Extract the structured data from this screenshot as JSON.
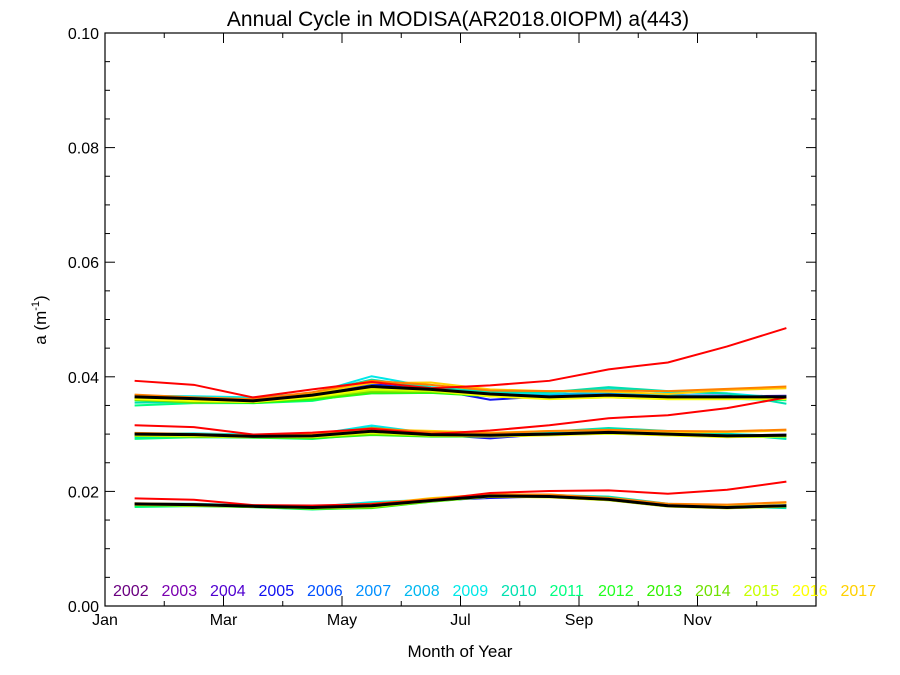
{
  "chart_data": {
    "type": "line",
    "title": "Annual Cycle in MODISA(AR2018.0IOPM) a(443)",
    "xlabel": "Month of Year",
    "ylabel": "a (m",
    "ylabel_exponent": "-1",
    "ylabel_close": ")",
    "xlim": [
      0,
      12
    ],
    "ylim": [
      0.0,
      0.1
    ],
    "x_ticks": [
      {
        "value": 0,
        "label": "Jan"
      },
      {
        "value": 2,
        "label": "Mar"
      },
      {
        "value": 4,
        "label": "May"
      },
      {
        "value": 6,
        "label": "Jul"
      },
      {
        "value": 8,
        "label": "Sep"
      },
      {
        "value": 10,
        "label": "Nov"
      }
    ],
    "y_ticks": [
      {
        "value": 0.0,
        "label": "0.00"
      },
      {
        "value": 0.02,
        "label": "0.02"
      },
      {
        "value": 0.04,
        "label": "0.04"
      },
      {
        "value": 0.06,
        "label": "0.06"
      },
      {
        "value": 0.08,
        "label": "0.08"
      },
      {
        "value": 0.1,
        "label": "0.10"
      }
    ],
    "grid": false,
    "legend_position": "bottom, inside plot area",
    "x": [
      0.5,
      1.5,
      2.5,
      3.5,
      4.5,
      5.5,
      6.5,
      7.5,
      8.5,
      9.5,
      10.5,
      11.5
    ],
    "groups": [
      {
        "baseline": [
          0.0365,
          0.0362,
          0.0358,
          0.0368,
          0.0383,
          0.0378,
          0.037,
          0.0365,
          0.0368,
          0.0365,
          0.0365,
          0.0365
        ],
        "mean": [
          0.0365,
          0.0362,
          0.0358,
          0.0368,
          0.0383,
          0.0378,
          0.037,
          0.0365,
          0.0368,
          0.0365,
          0.0365,
          0.0365
        ]
      },
      {
        "baseline": [
          0.03,
          0.0299,
          0.0296,
          0.0297,
          0.0305,
          0.0299,
          0.0298,
          0.03,
          0.0303,
          0.03,
          0.0297,
          0.0298
        ],
        "mean": [
          0.03,
          0.0299,
          0.0296,
          0.0297,
          0.0305,
          0.0299,
          0.0298,
          0.03,
          0.0303,
          0.03,
          0.0297,
          0.0298
        ]
      },
      {
        "baseline": [
          0.0178,
          0.0177,
          0.0174,
          0.0172,
          0.0175,
          0.0184,
          0.0192,
          0.0191,
          0.0186,
          0.0175,
          0.0172,
          0.0175
        ],
        "mean": [
          0.0178,
          0.0177,
          0.0174,
          0.0172,
          0.0175,
          0.0184,
          0.0192,
          0.0191,
          0.0186,
          0.0175,
          0.0172,
          0.0175
        ]
      }
    ],
    "series": [
      {
        "name": "2002",
        "color": "#6a0080",
        "offsets": [
          0.0001,
          0.0002,
          0.0003,
          -0.0001,
          0.0004,
          0.0002,
          -0.0001,
          0.0,
          0.0001,
          0.0002,
          0.0001,
          0.0
        ]
      },
      {
        "name": "2003",
        "color": "#7a00b0",
        "offsets": [
          0.0002,
          0.0001,
          0.0002,
          0.0003,
          0.0006,
          0.0003,
          0.0,
          0.0001,
          -0.0001,
          0.0001,
          0.0,
          0.0001
        ]
      },
      {
        "name": "2004",
        "color": "#5000d0",
        "offsets": [
          0.0,
          0.0,
          0.0002,
          0.0003,
          0.0004,
          0.0001,
          -0.0002,
          0.0,
          0.0001,
          0.0,
          0.0001,
          0.0002
        ]
      },
      {
        "name": "2005",
        "color": "#1010f0",
        "offsets": [
          -0.0002,
          -0.0003,
          0.0,
          0.0002,
          0.0003,
          0.0001,
          -0.001,
          0.0001,
          0.0002,
          0.0003,
          0.0002,
          0.0
        ]
      },
      {
        "name": "2006",
        "color": "#0050ff",
        "offsets": [
          -0.0001,
          -0.0002,
          0.0001,
          -0.0003,
          0.0002,
          0.0,
          -0.0004,
          0.0002,
          0.0003,
          0.0001,
          0.0,
          -0.0001
        ]
      },
      {
        "name": "2007",
        "color": "#0090ff",
        "offsets": [
          0.0003,
          0.0001,
          -0.0001,
          0.0,
          -0.0001,
          0.0002,
          0.0001,
          0.0003,
          0.0002,
          0.0001,
          0.0,
          0.0001
        ]
      },
      {
        "name": "2008",
        "color": "#00b8f0",
        "offsets": [
          0.0001,
          0.0003,
          0.0004,
          0.0002,
          0.0008,
          0.0002,
          0.0001,
          0.0004,
          0.0005,
          0.0003,
          0.0001,
          0.0
        ]
      },
      {
        "name": "2009",
        "color": "#00e8e8",
        "offsets": [
          0.0002,
          0.0004,
          0.0006,
          0.0003,
          0.0018,
          0.0004,
          0.0003,
          0.0006,
          0.0012,
          0.0008,
          0.0006,
          -0.0002
        ]
      },
      {
        "name": "2010",
        "color": "#00e0b0",
        "offsets": [
          -0.001,
          -0.0006,
          -0.0002,
          0.0004,
          0.0012,
          0.0003,
          0.0004,
          0.0008,
          0.0014,
          0.001,
          0.0006,
          -0.0012
        ]
      },
      {
        "name": "2011",
        "color": "#00ff80",
        "offsets": [
          -0.0015,
          -0.0008,
          -0.0004,
          -0.001,
          -0.0008,
          -0.0004,
          -0.0002,
          -0.0001,
          -0.0002,
          -0.0002,
          -0.0003,
          -0.0006
        ]
      },
      {
        "name": "2012",
        "color": "#20ff20",
        "offsets": [
          -0.0006,
          -0.0005,
          -0.0004,
          -0.0008,
          -0.0012,
          -0.0006,
          -0.0004,
          -0.0003,
          -0.0004,
          -0.0003,
          -0.0002,
          -0.0003
        ]
      },
      {
        "name": "2013",
        "color": "#30f000",
        "offsets": [
          -0.0004,
          -0.0006,
          -0.0003,
          -0.0006,
          -0.001,
          -0.0005,
          -0.0003,
          -0.0002,
          -0.0001,
          0.0,
          -0.0001,
          -0.0002
        ]
      },
      {
        "name": "2014",
        "color": "#70e000",
        "offsets": [
          -0.0005,
          -0.0007,
          -0.0002,
          -0.0005,
          -0.0009,
          -0.0004,
          -0.0002,
          -0.0001,
          -0.0001,
          0.0001,
          0.0,
          -0.0002
        ]
      },
      {
        "name": "2015",
        "color": "#c8ff00",
        "offsets": [
          -0.0003,
          -0.0004,
          -0.0002,
          -0.0004,
          -0.0006,
          -0.0003,
          -0.0004,
          -0.0003,
          -0.0003,
          -0.0004,
          -0.0004,
          -0.0004
        ]
      },
      {
        "name": "2016",
        "color": "#ffff00",
        "offsets": [
          -0.0004,
          -0.0004,
          -0.0002,
          -0.0003,
          -0.0003,
          -0.0001,
          -0.0004,
          -0.0004,
          -0.0004,
          -0.0004,
          -0.0004,
          -0.0003
        ]
      },
      {
        "name": "2017",
        "color": "#ffd000",
        "offsets": [
          0.0002,
          0.0,
          0.0001,
          0.0003,
          0.0006,
          0.0012,
          0.0008,
          0.001,
          0.0006,
          0.0005,
          0.0012,
          0.0015
        ]
      },
      {
        "name": "",
        "color": "#ff8000",
        "offsets": [
          0.0004,
          0.0002,
          0.0003,
          0.0005,
          0.001,
          0.0008,
          0.0006,
          0.001,
          0.0008,
          0.001,
          0.0014,
          0.0018
        ]
      },
      {
        "name": "",
        "color": "#ff0000",
        "offsets": [
          0.0028,
          0.0024,
          0.0006,
          0.001,
          0.0008,
          0.0002,
          0.0015,
          0.0028,
          0.0045,
          0.006,
          0.0088,
          0.012
        ]
      }
    ]
  }
}
